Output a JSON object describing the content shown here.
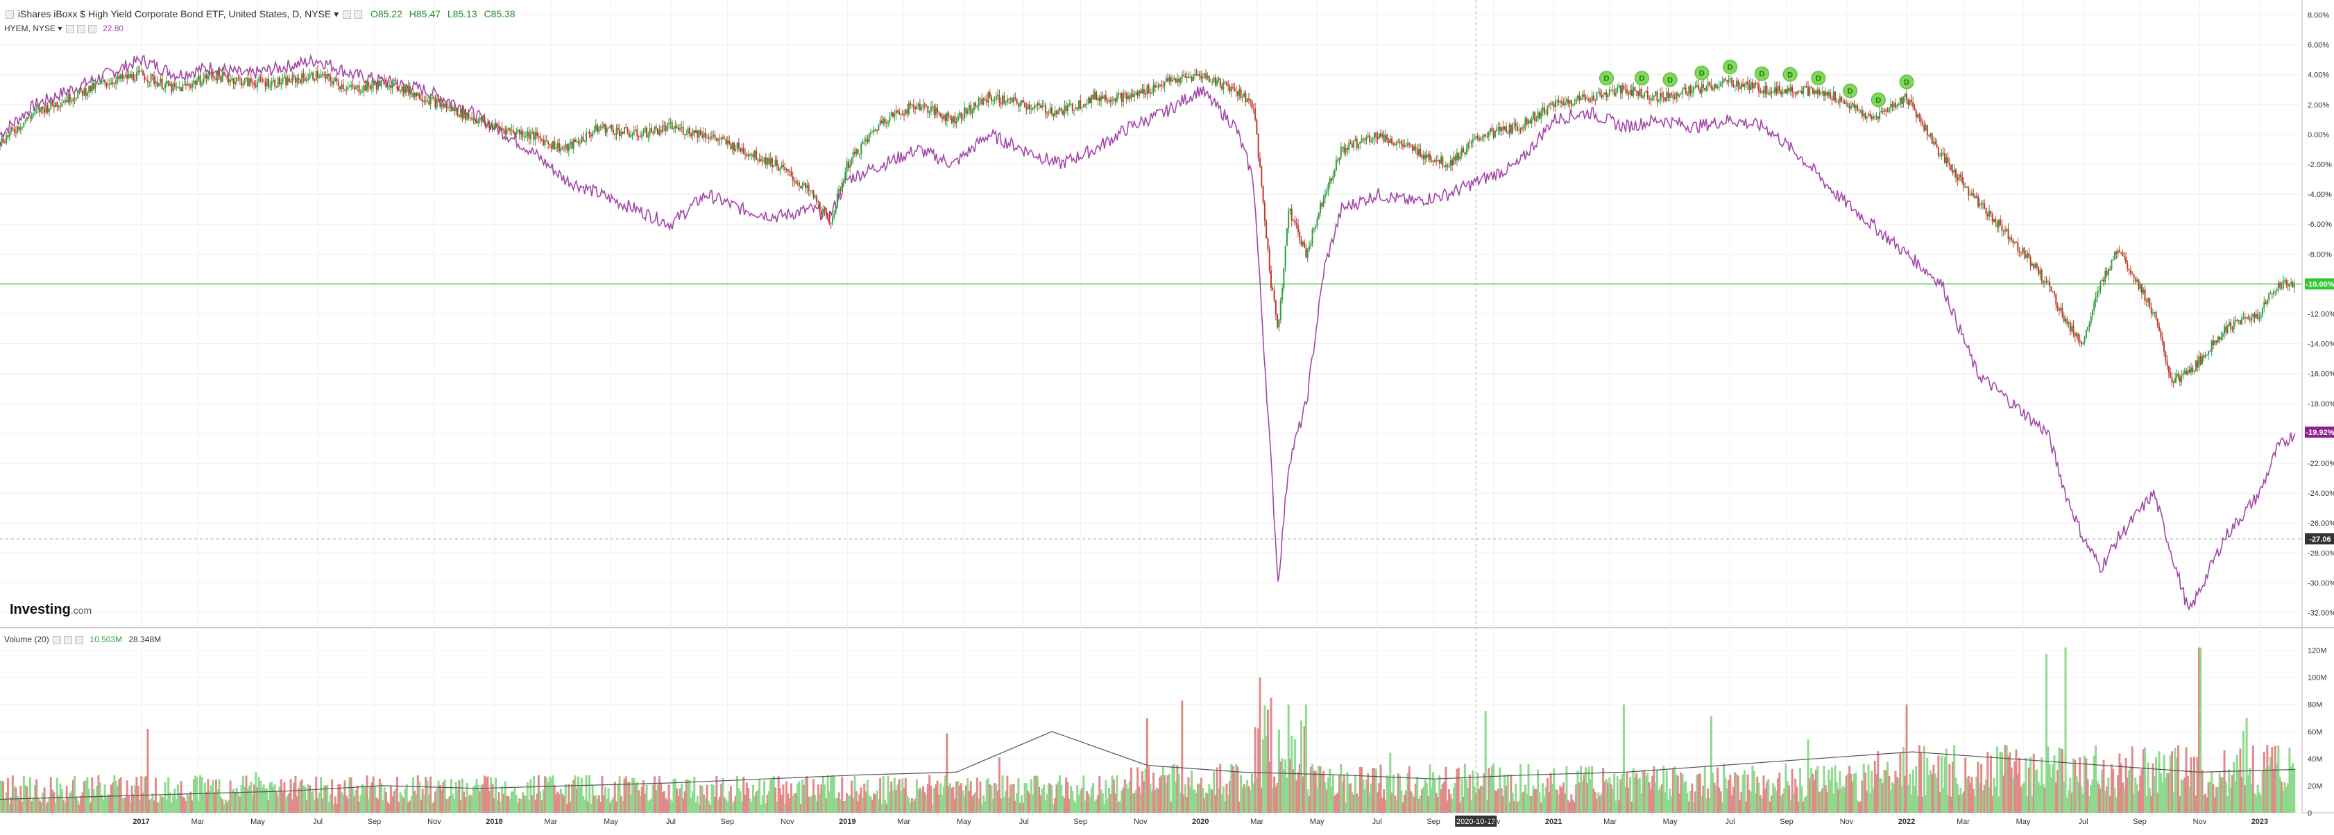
{
  "header": {
    "title": "iShares iBoxx $ High Yield Corporate Bond ETF, United States, D, NYSE",
    "open": "O85.22",
    "high": "H85.47",
    "low": "L85.13",
    "close": "C85.38",
    "compare_label": "HYEM, NYSE",
    "compare_value": "22.80",
    "volume_label": "Volume (20)",
    "volume_value": "10.503M",
    "volume_ma": "28.348M"
  },
  "logo": {
    "text": "Investing",
    "suffix": ".com"
  },
  "colors": {
    "up": "#2e9e3e",
    "down": "#c0392b",
    "compare_line": "#a347a8",
    "hline": "#7fd87f",
    "vol_up": "#8fd98f",
    "vol_down": "#e08a8a",
    "dividend": "#7ed957"
  },
  "chart_data": [
    {
      "type": "line",
      "title": "iShares iBoxx $ High Yield Corporate Bond ETF, United States, D, NYSE",
      "ylabel": "",
      "ylim": [
        -33,
        9
      ],
      "yticks": [
        "8.00%",
        "6.00%",
        "4.00%",
        "2.00%",
        "0.00%",
        "-2.00%",
        "-4.00%",
        "-6.00%",
        "-8.00%",
        "-10.00%",
        "-12.00%",
        "-14.00%",
        "-16.00%",
        "-18.00%",
        "-20.00%",
        "-22.00%",
        "-24.00%",
        "-26.00%",
        "-28.00%",
        "-30.00%",
        "-32.00%"
      ],
      "ytick_values": [
        8,
        6,
        4,
        2,
        0,
        -2,
        -4,
        -6,
        -8,
        -10,
        -12,
        -14,
        -16,
        -18,
        -20,
        -22,
        -24,
        -26,
        -28,
        -30,
        -32
      ],
      "xticks": [
        "2017",
        "Mar",
        "May",
        "Jul",
        "Sep",
        "Nov",
        "2018",
        "Mar",
        "May",
        "Jul",
        "Sep",
        "Nov",
        "2019",
        "Mar",
        "May",
        "Jul",
        "Sep",
        "Nov",
        "2020",
        "Mar",
        "May",
        "Jul",
        "Sep",
        "2020-10-12",
        "Nov",
        "2021",
        "Mar",
        "May",
        "Jul",
        "Sep",
        "Nov",
        "2022",
        "Mar",
        "May",
        "Jul",
        "Sep",
        "Nov",
        "2023"
      ],
      "xtick_values": [
        2017.0,
        2017.16,
        2017.33,
        2017.5,
        2017.66,
        2017.83,
        2018.0,
        2018.16,
        2018.33,
        2018.5,
        2018.66,
        2018.83,
        2019.0,
        2019.16,
        2019.33,
        2019.5,
        2019.66,
        2019.83,
        2020.0,
        2020.16,
        2020.33,
        2020.5,
        2020.66,
        2020.78,
        2020.83,
        2021.0,
        2021.16,
        2021.33,
        2021.5,
        2021.66,
        2021.83,
        2022.0,
        2022.16,
        2022.33,
        2022.5,
        2022.66,
        2022.83,
        2023.0
      ],
      "x_range": [
        2016.6,
        2023.12
      ],
      "crosshair_x_label": "2020-10-12",
      "crosshair_y_label": "-27.06",
      "hline_value": -10.0,
      "series": [
        {
          "name": "HYG",
          "x": [
            2016.6,
            2016.7,
            2016.8,
            2016.9,
            2017.0,
            2017.1,
            2017.2,
            2017.3,
            2017.4,
            2017.5,
            2017.6,
            2017.7,
            2017.8,
            2017.9,
            2018.0,
            2018.1,
            2018.2,
            2018.3,
            2018.4,
            2018.5,
            2018.6,
            2018.7,
            2018.8,
            2018.9,
            2018.95,
            2019.0,
            2019.1,
            2019.2,
            2019.3,
            2019.4,
            2019.5,
            2019.6,
            2019.7,
            2019.8,
            2019.9,
            2020.0,
            2020.1,
            2020.15,
            2020.2,
            2020.22,
            2020.25,
            2020.3,
            2020.35,
            2020.4,
            2020.5,
            2020.6,
            2020.7,
            2020.8,
            2020.9,
            2021.0,
            2021.1,
            2021.2,
            2021.3,
            2021.4,
            2021.5,
            2021.6,
            2021.7,
            2021.8,
            2021.9,
            2022.0,
            2022.1,
            2022.2,
            2022.3,
            2022.4,
            2022.45,
            2022.5,
            2022.55,
            2022.6,
            2022.7,
            2022.75,
            2022.8,
            2022.9,
            2023.0,
            2023.05,
            2023.1
          ],
          "values": [
            -0.5,
            1.5,
            2.5,
            3.5,
            4.0,
            3.0,
            4.0,
            3.5,
            3.5,
            4.0,
            3.0,
            3.5,
            2.5,
            1.5,
            0.5,
            0.0,
            -1.0,
            0.5,
            0.0,
            0.5,
            0.0,
            -1.0,
            -2.0,
            -4.0,
            -6.0,
            -2.0,
            1.0,
            2.0,
            1.0,
            2.5,
            2.0,
            1.5,
            2.5,
            2.5,
            3.5,
            4.0,
            3.0,
            2.0,
            -10.0,
            -13.0,
            -5.0,
            -8.0,
            -4.0,
            -1.0,
            0.0,
            -1.0,
            -2.0,
            0.0,
            0.5,
            2.0,
            2.5,
            3.0,
            2.5,
            3.0,
            3.5,
            3.0,
            3.0,
            2.5,
            1.0,
            2.5,
            -1.5,
            -4.5,
            -7.0,
            -10.0,
            -12.5,
            -14.0,
            -10.0,
            -7.5,
            -12.0,
            -16.5,
            -16.0,
            -13.0,
            -12.0,
            -10.0,
            -10.0
          ]
        },
        {
          "name": "HYEM",
          "x": [
            2016.6,
            2016.7,
            2016.8,
            2016.9,
            2017.0,
            2017.1,
            2017.2,
            2017.3,
            2017.4,
            2017.5,
            2017.6,
            2017.7,
            2017.8,
            2017.9,
            2018.0,
            2018.1,
            2018.2,
            2018.3,
            2018.4,
            2018.5,
            2018.6,
            2018.7,
            2018.8,
            2018.9,
            2018.95,
            2019.0,
            2019.1,
            2019.2,
            2019.3,
            2019.4,
            2019.5,
            2019.6,
            2019.7,
            2019.8,
            2019.9,
            2020.0,
            2020.1,
            2020.15,
            2020.2,
            2020.22,
            2020.25,
            2020.3,
            2020.35,
            2020.4,
            2020.5,
            2020.6,
            2020.7,
            2020.8,
            2020.9,
            2021.0,
            2021.1,
            2021.2,
            2021.3,
            2021.4,
            2021.5,
            2021.6,
            2021.7,
            2021.8,
            2021.9,
            2022.0,
            2022.1,
            2022.2,
            2022.3,
            2022.4,
            2022.45,
            2022.5,
            2022.55,
            2022.6,
            2022.7,
            2022.75,
            2022.8,
            2022.9,
            2023.0,
            2023.05,
            2023.1
          ],
          "values": [
            0.0,
            2.0,
            3.0,
            4.0,
            5.0,
            4.0,
            4.5,
            4.0,
            4.5,
            5.0,
            4.0,
            3.5,
            3.0,
            2.0,
            0.5,
            -1.0,
            -3.0,
            -4.0,
            -5.0,
            -6.0,
            -4.0,
            -5.0,
            -5.5,
            -5.0,
            -5.5,
            -3.0,
            -2.0,
            -1.0,
            -2.0,
            0.0,
            -1.0,
            -2.0,
            -1.0,
            0.5,
            1.5,
            3.0,
            0.5,
            -3.0,
            -22.0,
            -30.0,
            -22.0,
            -18.0,
            -9.0,
            -5.0,
            -4.0,
            -4.5,
            -4.0,
            -3.0,
            -2.0,
            1.0,
            1.5,
            0.5,
            1.0,
            0.5,
            1.0,
            0.5,
            -1.5,
            -4.0,
            -6.0,
            -8.0,
            -10.0,
            -16.0,
            -18.0,
            -20.0,
            -24.0,
            -27.0,
            -29.0,
            -27.0,
            -24.0,
            -28.0,
            -32.0,
            -27.0,
            -24.0,
            -21.0,
            -20.0
          ]
        }
      ],
      "dividends": [
        2021.15,
        2021.25,
        2021.33,
        2021.42,
        2021.5,
        2021.59,
        2021.67,
        2021.75,
        2021.84,
        2021.92,
        2022.0
      ],
      "dividend_label": "D",
      "badges": [
        {
          "label": "-10.00%",
          "value": -10.0,
          "color": "#32c832"
        },
        {
          "label": "-19.92%",
          "value": -19.92,
          "color": "#8b1f8b"
        },
        {
          "label": "-27.06",
          "value": -27.06,
          "color": "#333333"
        }
      ]
    },
    {
      "type": "bar",
      "title": "Volume (20)",
      "ylim": [
        0,
        130
      ],
      "yticks": [
        "120M",
        "100M",
        "80M",
        "60M",
        "40M",
        "20M",
        "0"
      ],
      "ytick_values": [
        120,
        100,
        80,
        60,
        40,
        20,
        0
      ],
      "spikes": [
        {
          "x": 2020.17,
          "value": 100
        },
        {
          "x": 2020.2,
          "value": 85
        },
        {
          "x": 2022.45,
          "value": 122
        },
        {
          "x": 2022.83,
          "value": 122
        },
        {
          "x": 2021.2,
          "value": 80
        },
        {
          "x": 2019.85,
          "value": 70
        },
        {
          "x": 2022.0,
          "value": 80
        }
      ],
      "baseline_level": 20,
      "ma_values": [
        10,
        12,
        14,
        16,
        20,
        18,
        20,
        22,
        25,
        28,
        30,
        60,
        35,
        30,
        28,
        25,
        28,
        30,
        35,
        40,
        45,
        40,
        35,
        30,
        32
      ]
    }
  ]
}
